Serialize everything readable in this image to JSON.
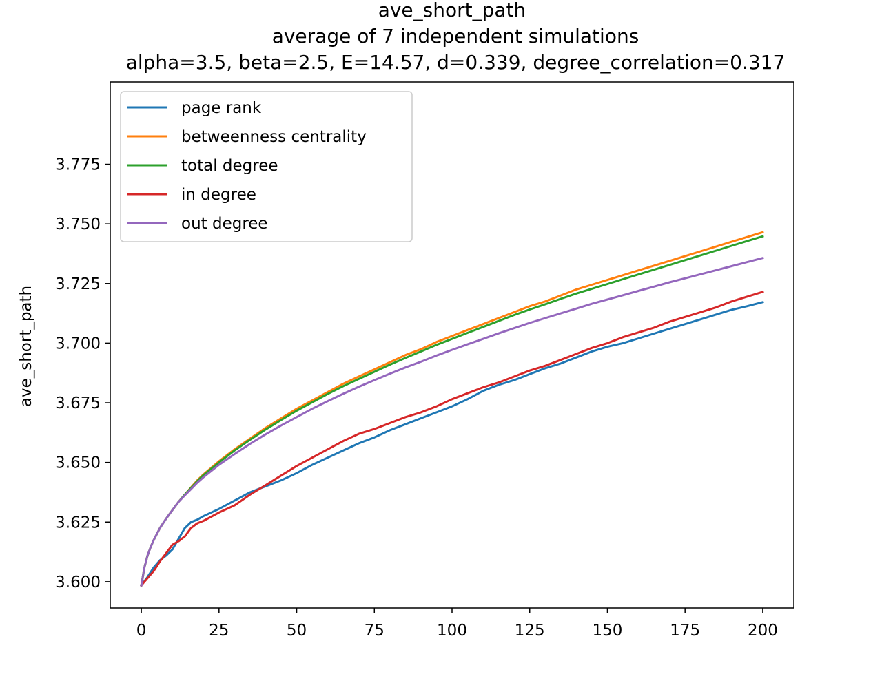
{
  "chart_data": {
    "type": "line",
    "title": "ave_short_path",
    "subtitle": "average of 7 independent simulations",
    "subtitle2": "alpha=3.5, beta=2.5, E=14.57, d=0.339, degree_correlation=0.317",
    "xlabel": "",
    "ylabel": "ave_short_path",
    "xlim": [
      -10,
      210
    ],
    "ylim": [
      3.589,
      3.8095
    ],
    "xticks": [
      0,
      25,
      50,
      75,
      100,
      125,
      150,
      175,
      200
    ],
    "yticks": [
      3.6,
      3.625,
      3.65,
      3.675,
      3.7,
      3.725,
      3.75,
      3.775
    ],
    "ytick_labels": [
      "3.600",
      "3.625",
      "3.650",
      "3.675",
      "3.700",
      "3.725",
      "3.750",
      "3.775"
    ],
    "grid": false,
    "legend_position": "top-left",
    "colors": {
      "page_rank": "#1f77b4",
      "betweenness": "#ff7f0e",
      "total_degree": "#2ca02c",
      "in_degree": "#d62728",
      "out_degree": "#9467bd"
    },
    "series": [
      {
        "name": "page rank",
        "color": "#1f77b4",
        "points": [
          [
            0,
            3.5985
          ],
          [
            2,
            3.602
          ],
          [
            4,
            3.606
          ],
          [
            6,
            3.609
          ],
          [
            8,
            3.611
          ],
          [
            10,
            3.6135
          ],
          [
            12,
            3.618
          ],
          [
            14,
            3.6225
          ],
          [
            16,
            3.625
          ],
          [
            18,
            3.626
          ],
          [
            20,
            3.6275
          ],
          [
            25,
            3.6305
          ],
          [
            30,
            3.634
          ],
          [
            35,
            3.6375
          ],
          [
            40,
            3.64
          ],
          [
            45,
            3.6425
          ],
          [
            50,
            3.6455
          ],
          [
            55,
            3.649
          ],
          [
            60,
            3.652
          ],
          [
            65,
            3.655
          ],
          [
            70,
            3.658
          ],
          [
            75,
            3.6605
          ],
          [
            80,
            3.6635
          ],
          [
            85,
            3.666
          ],
          [
            90,
            3.6685
          ],
          [
            95,
            3.671
          ],
          [
            100,
            3.6735
          ],
          [
            105,
            3.6765
          ],
          [
            110,
            3.68
          ],
          [
            115,
            3.6825
          ],
          [
            120,
            3.6845
          ],
          [
            125,
            3.687
          ],
          [
            130,
            3.6895
          ],
          [
            135,
            3.6915
          ],
          [
            140,
            3.694
          ],
          [
            145,
            3.6965
          ],
          [
            150,
            3.6985
          ],
          [
            155,
            3.7
          ],
          [
            160,
            3.702
          ],
          [
            165,
            3.704
          ],
          [
            170,
            3.706
          ],
          [
            175,
            3.708
          ],
          [
            180,
            3.71
          ],
          [
            185,
            3.712
          ],
          [
            190,
            3.714
          ],
          [
            195,
            3.7155
          ],
          [
            200,
            3.7172
          ]
        ]
      },
      {
        "name": "betweenness centrality",
        "color": "#ff7f0e",
        "points": [
          [
            0,
            3.5985
          ],
          [
            1,
            3.606
          ],
          [
            2,
            3.611
          ],
          [
            3,
            3.6145
          ],
          [
            4,
            3.6175
          ],
          [
            5,
            3.62
          ],
          [
            6,
            3.6225
          ],
          [
            8,
            3.6265
          ],
          [
            10,
            3.63
          ],
          [
            12,
            3.6335
          ],
          [
            14,
            3.6365
          ],
          [
            16,
            3.6395
          ],
          [
            18,
            3.6425
          ],
          [
            20,
            3.645
          ],
          [
            25,
            3.6505
          ],
          [
            30,
            3.6555
          ],
          [
            35,
            3.66
          ],
          [
            40,
            3.6645
          ],
          [
            45,
            3.6685
          ],
          [
            50,
            3.6725
          ],
          [
            55,
            3.676
          ],
          [
            60,
            3.6795
          ],
          [
            65,
            3.683
          ],
          [
            70,
            3.686
          ],
          [
            75,
            3.689
          ],
          [
            80,
            3.692
          ],
          [
            85,
            3.695
          ],
          [
            90,
            3.6975
          ],
          [
            95,
            3.7005
          ],
          [
            100,
            3.703
          ],
          [
            105,
            3.7055
          ],
          [
            110,
            3.708
          ],
          [
            115,
            3.7105
          ],
          [
            120,
            3.713
          ],
          [
            125,
            3.7155
          ],
          [
            130,
            3.7175
          ],
          [
            135,
            3.72
          ],
          [
            140,
            3.7225
          ],
          [
            145,
            3.7245
          ],
          [
            150,
            3.7265
          ],
          [
            155,
            3.7285
          ],
          [
            160,
            3.7305
          ],
          [
            165,
            3.7325
          ],
          [
            170,
            3.7345
          ],
          [
            175,
            3.7365
          ],
          [
            180,
            3.7385
          ],
          [
            185,
            3.7405
          ],
          [
            190,
            3.7425
          ],
          [
            195,
            3.7445
          ],
          [
            200,
            3.7465
          ]
        ]
      },
      {
        "name": "total degree",
        "color": "#2ca02c",
        "points": [
          [
            0,
            3.5985
          ],
          [
            1,
            3.606
          ],
          [
            2,
            3.611
          ],
          [
            3,
            3.6145
          ],
          [
            4,
            3.6175
          ],
          [
            5,
            3.62
          ],
          [
            6,
            3.6225
          ],
          [
            8,
            3.6265
          ],
          [
            10,
            3.63
          ],
          [
            12,
            3.6335
          ],
          [
            14,
            3.6365
          ],
          [
            16,
            3.6393
          ],
          [
            18,
            3.6422
          ],
          [
            20,
            3.6447
          ],
          [
            25,
            3.65
          ],
          [
            30,
            3.655
          ],
          [
            35,
            3.6595
          ],
          [
            40,
            3.6638
          ],
          [
            45,
            3.6678
          ],
          [
            50,
            3.6717
          ],
          [
            55,
            3.6752
          ],
          [
            60,
            3.6787
          ],
          [
            65,
            3.682
          ],
          [
            70,
            3.685
          ],
          [
            75,
            3.688
          ],
          [
            80,
            3.691
          ],
          [
            85,
            3.6938
          ],
          [
            90,
            3.6965
          ],
          [
            95,
            3.6993
          ],
          [
            100,
            3.7018
          ],
          [
            105,
            3.7043
          ],
          [
            110,
            3.7068
          ],
          [
            115,
            3.7093
          ],
          [
            120,
            3.7118
          ],
          [
            125,
            3.7141
          ],
          [
            130,
            3.7163
          ],
          [
            135,
            3.7186
          ],
          [
            140,
            3.7208
          ],
          [
            145,
            3.7228
          ],
          [
            150,
            3.7248
          ],
          [
            155,
            3.7268
          ],
          [
            160,
            3.7288
          ],
          [
            165,
            3.7308
          ],
          [
            170,
            3.7328
          ],
          [
            175,
            3.7348
          ],
          [
            180,
            3.7368
          ],
          [
            185,
            3.7388
          ],
          [
            190,
            3.7408
          ],
          [
            195,
            3.7428
          ],
          [
            200,
            3.7448
          ]
        ]
      },
      {
        "name": "in degree",
        "color": "#d62728",
        "points": [
          [
            0,
            3.5985
          ],
          [
            2,
            3.6015
          ],
          [
            4,
            3.6045
          ],
          [
            6,
            3.6085
          ],
          [
            8,
            3.612
          ],
          [
            10,
            3.6155
          ],
          [
            12,
            3.617
          ],
          [
            14,
            3.619
          ],
          [
            16,
            3.6225
          ],
          [
            18,
            3.6245
          ],
          [
            20,
            3.6255
          ],
          [
            25,
            3.629
          ],
          [
            30,
            3.632
          ],
          [
            35,
            3.6365
          ],
          [
            40,
            3.6405
          ],
          [
            45,
            3.6445
          ],
          [
            50,
            3.6485
          ],
          [
            55,
            3.652
          ],
          [
            60,
            3.6555
          ],
          [
            65,
            3.659
          ],
          [
            70,
            3.662
          ],
          [
            75,
            3.664
          ],
          [
            80,
            3.6665
          ],
          [
            85,
            3.669
          ],
          [
            90,
            3.671
          ],
          [
            95,
            3.6735
          ],
          [
            100,
            3.6765
          ],
          [
            105,
            3.679
          ],
          [
            110,
            3.6815
          ],
          [
            115,
            3.6835
          ],
          [
            120,
            3.686
          ],
          [
            125,
            3.6885
          ],
          [
            130,
            3.6905
          ],
          [
            135,
            3.693
          ],
          [
            140,
            3.6955
          ],
          [
            145,
            3.698
          ],
          [
            150,
            3.7
          ],
          [
            155,
            3.7025
          ],
          [
            160,
            3.7045
          ],
          [
            165,
            3.7065
          ],
          [
            170,
            3.709
          ],
          [
            175,
            3.711
          ],
          [
            180,
            3.713
          ],
          [
            185,
            3.715
          ],
          [
            190,
            3.7175
          ],
          [
            195,
            3.7195
          ],
          [
            200,
            3.7215
          ]
        ]
      },
      {
        "name": "out degree",
        "color": "#9467bd",
        "points": [
          [
            0,
            3.5985
          ],
          [
            1,
            3.606
          ],
          [
            2,
            3.611
          ],
          [
            3,
            3.6145
          ],
          [
            4,
            3.6175
          ],
          [
            5,
            3.62
          ],
          [
            6,
            3.6225
          ],
          [
            8,
            3.6265
          ],
          [
            10,
            3.63
          ],
          [
            12,
            3.6335
          ],
          [
            14,
            3.6362
          ],
          [
            16,
            3.6388
          ],
          [
            18,
            3.6415
          ],
          [
            20,
            3.6438
          ],
          [
            25,
            3.649
          ],
          [
            30,
            3.6535
          ],
          [
            35,
            3.6578
          ],
          [
            40,
            3.6618
          ],
          [
            45,
            3.6655
          ],
          [
            50,
            3.669
          ],
          [
            55,
            3.6725
          ],
          [
            60,
            3.6757
          ],
          [
            65,
            3.6788
          ],
          [
            70,
            3.6817
          ],
          [
            75,
            3.6845
          ],
          [
            80,
            3.6872
          ],
          [
            85,
            3.6898
          ],
          [
            90,
            3.6922
          ],
          [
            95,
            3.6948
          ],
          [
            100,
            3.6972
          ],
          [
            105,
            3.6995
          ],
          [
            110,
            3.7018
          ],
          [
            115,
            3.7041
          ],
          [
            120,
            3.7063
          ],
          [
            125,
            3.7085
          ],
          [
            130,
            3.7105
          ],
          [
            135,
            3.7125
          ],
          [
            140,
            3.7145
          ],
          [
            145,
            3.7165
          ],
          [
            150,
            3.7183
          ],
          [
            155,
            3.7201
          ],
          [
            160,
            3.7219
          ],
          [
            165,
            3.7237
          ],
          [
            170,
            3.7255
          ],
          [
            175,
            3.7272
          ],
          [
            180,
            3.7289
          ],
          [
            185,
            3.7306
          ],
          [
            190,
            3.7323
          ],
          [
            195,
            3.734
          ],
          [
            200,
            3.7357
          ]
        ]
      }
    ]
  }
}
